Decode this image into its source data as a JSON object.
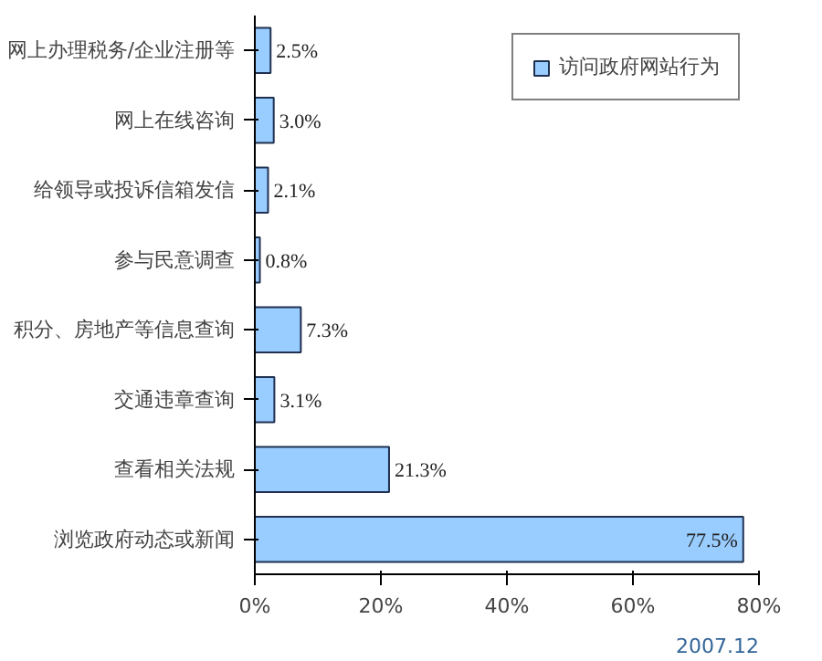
{
  "chart_data": {
    "type": "bar",
    "orientation": "horizontal",
    "categories": [
      "网上办理税务/企业注册等",
      "网上在线咨询",
      "给领导或投诉信箱发信",
      "参与民意调查",
      "积分、房地产等信息查询",
      "交通违章查询",
      "查看相关法规",
      "浏览政府动态或新闻"
    ],
    "series": [
      {
        "name": "访问政府网站行为",
        "color": "#99ccff",
        "values": [
          2.5,
          3.0,
          2.1,
          0.8,
          7.3,
          3.1,
          21.3,
          77.5
        ],
        "value_labels": [
          "2.5%",
          "3.0%",
          "2.1%",
          "0.8%",
          "7.3%",
          "3.1%",
          "21.3%",
          "77.5%"
        ]
      }
    ],
    "xlim": [
      0,
      80
    ],
    "xticks": [
      {
        "value": 0,
        "label": "0%"
      },
      {
        "value": 20,
        "label": "20%"
      },
      {
        "value": 40,
        "label": "40%"
      },
      {
        "value": 60,
        "label": "60%"
      },
      {
        "value": 80,
        "label": "80%"
      }
    ],
    "legend": "top right",
    "grid": false,
    "annotations": [
      "2007.12"
    ]
  }
}
